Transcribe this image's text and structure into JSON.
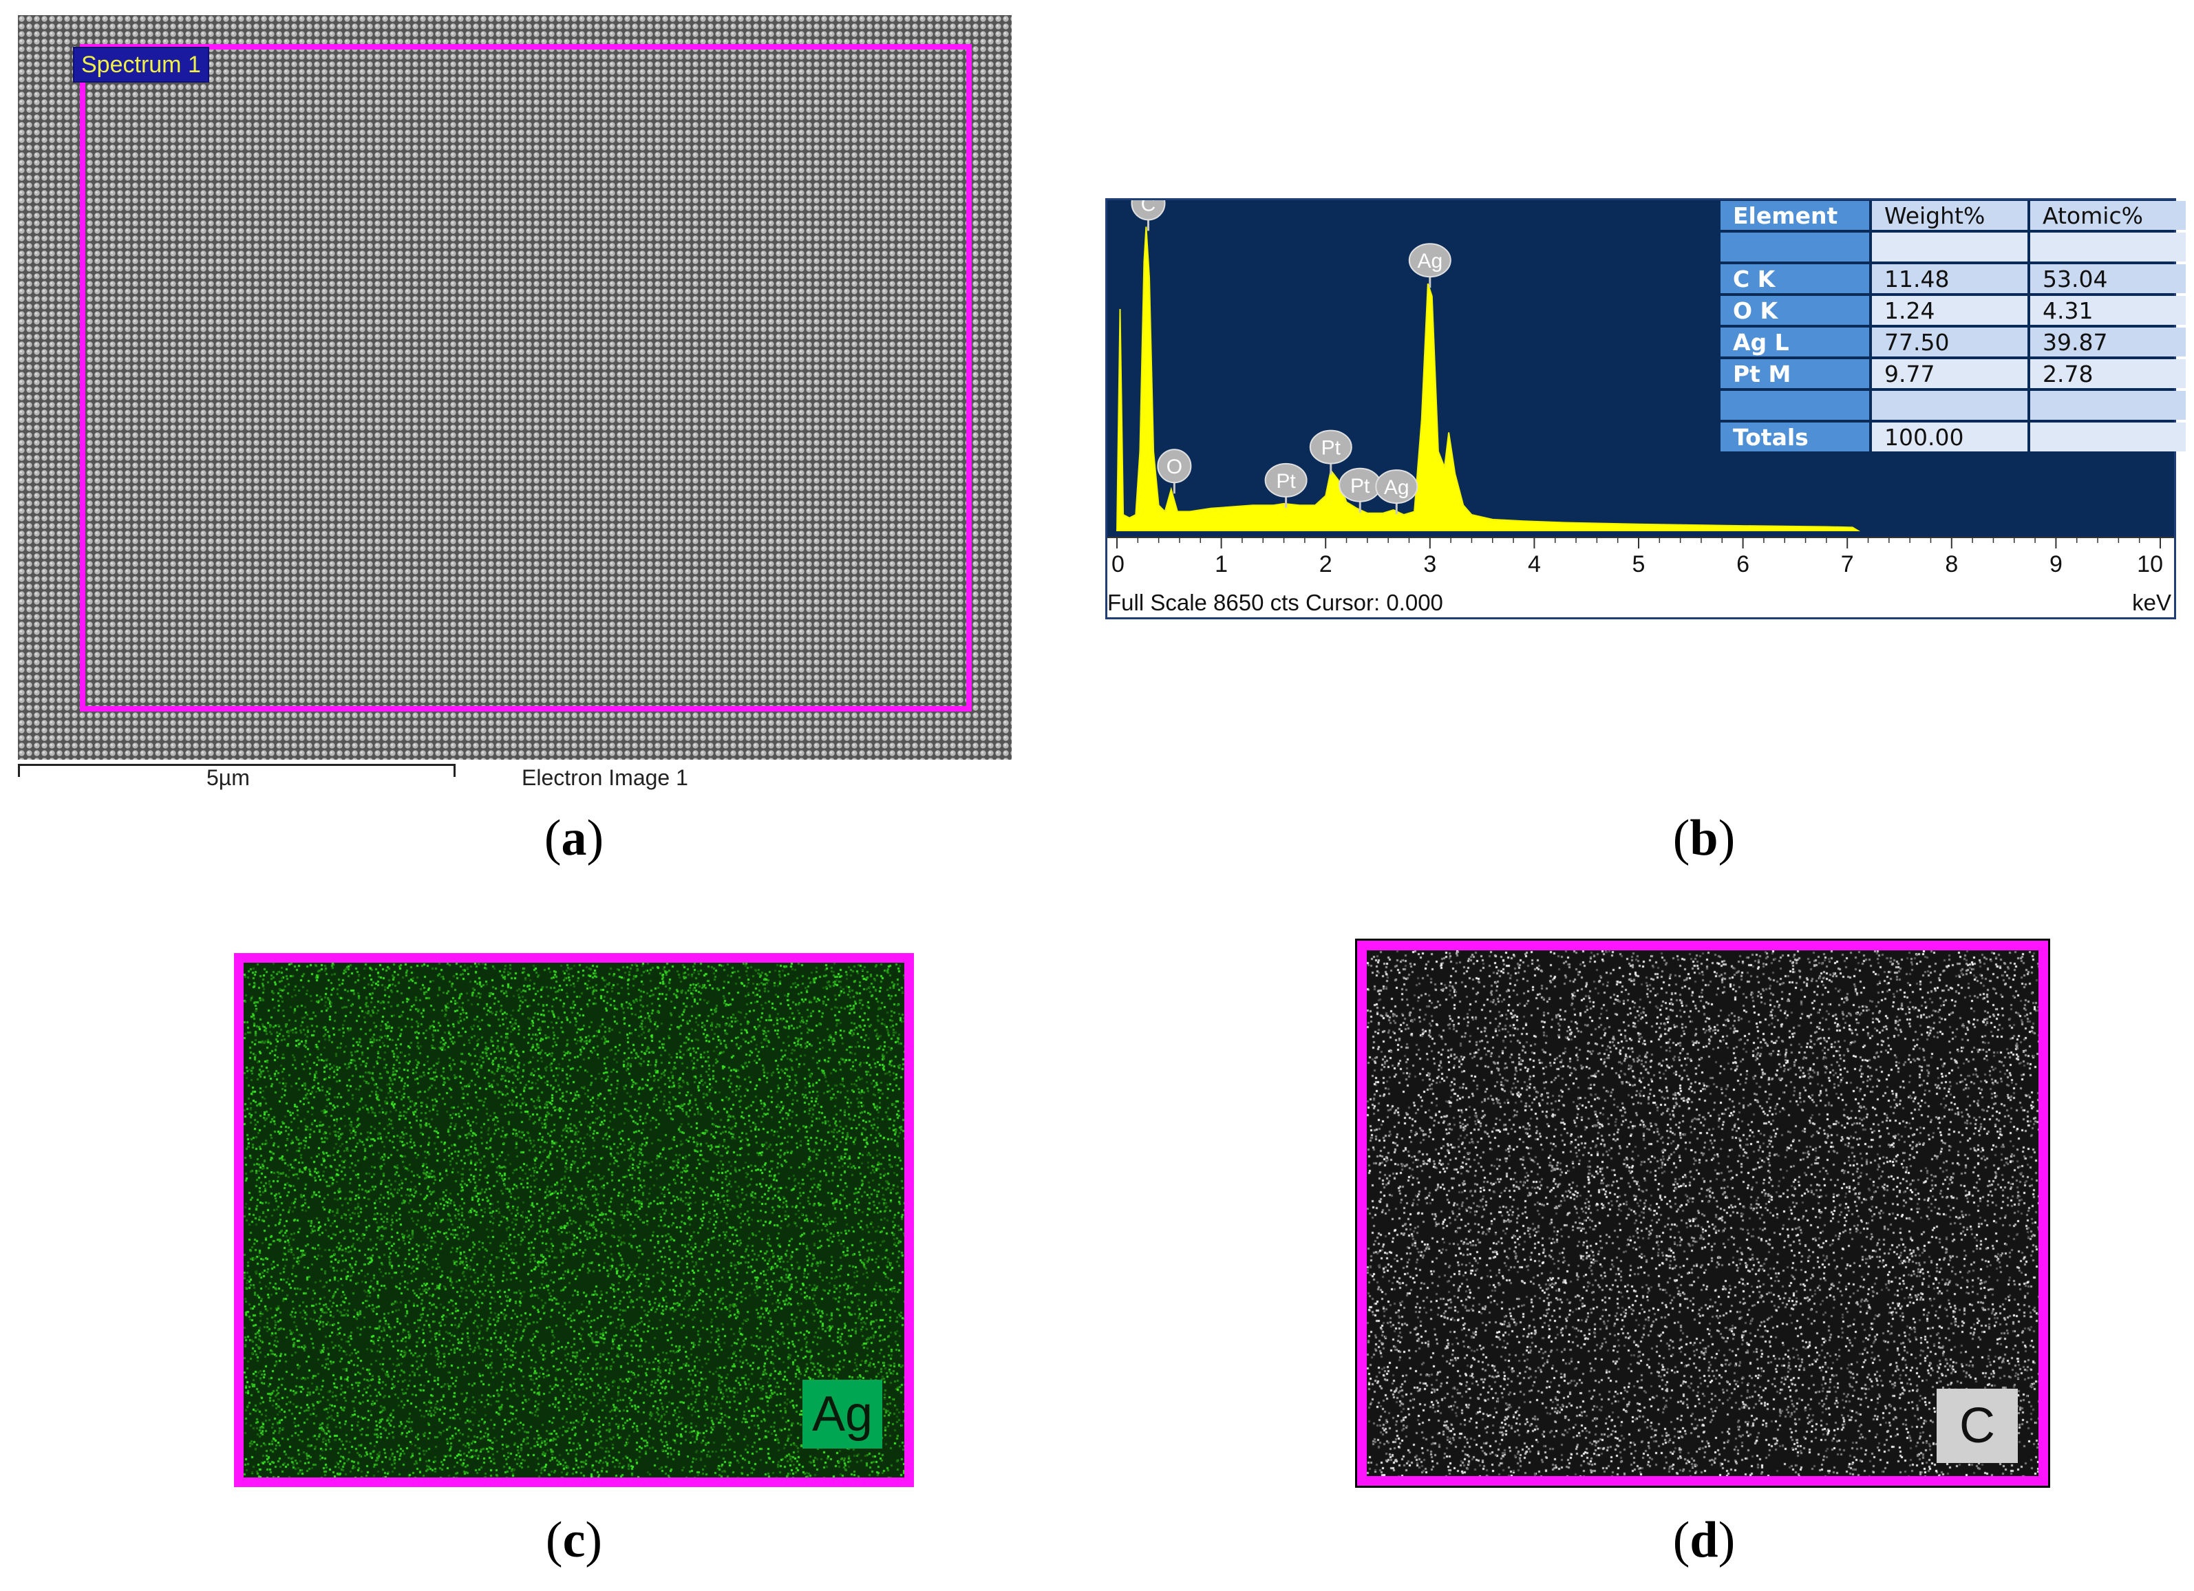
{
  "panels": {
    "a": {
      "label": "(a)",
      "label_letter": "a",
      "spectrum_label": "Spectrum 1",
      "scale_bar": "5µm",
      "image_caption": "Electron Image 1"
    },
    "b": {
      "label": "(b)",
      "label_letter": "b",
      "footer_left": "Full Scale 8650 cts Cursor: 0.000",
      "footer_right": "keV",
      "table": {
        "headers": [
          "Element",
          "Weight%",
          "Atomic%"
        ],
        "rows": [
          [
            "",
            "",
            ""
          ],
          [
            "C K",
            "11.48",
            "53.04"
          ],
          [
            "O K",
            "1.24",
            "4.31"
          ],
          [
            "Ag L",
            "77.50",
            "39.87"
          ],
          [
            "Pt M",
            "9.77",
            "2.78"
          ],
          [
            "",
            "",
            ""
          ],
          [
            "Totals",
            "100.00",
            ""
          ]
        ]
      }
    },
    "c": {
      "label": "(c)",
      "label_letter": "c",
      "element_tag": "Ag"
    },
    "d": {
      "label": "(d)",
      "label_letter": "d",
      "element_tag": "C"
    }
  },
  "chart_data": {
    "type": "line",
    "xlabel": "keV",
    "xlim": [
      0,
      10
    ],
    "x_ticks": [
      "0",
      "1",
      "2",
      "3",
      "4",
      "5",
      "6",
      "7",
      "8",
      "9",
      "10"
    ],
    "full_scale_cts": 8650,
    "peaks": [
      {
        "element": "C",
        "kev": 0.28,
        "label_kev": 0.3
      },
      {
        "element": "O",
        "kev": 0.52,
        "label_kev": 0.55
      },
      {
        "element": "Pt",
        "kev": 1.6,
        "label_kev": 1.62
      },
      {
        "element": "Pt",
        "kev": 2.05,
        "label_kev": 2.05
      },
      {
        "element": "Pt",
        "kev": 2.3,
        "label_kev": 2.33
      },
      {
        "element": "Ag",
        "kev": 2.98,
        "label_kev": 3.0
      },
      {
        "element": "Ag",
        "kev": 2.65,
        "label_kev": 2.68
      }
    ],
    "spectrum": [
      [
        0.0,
        0.0
      ],
      [
        0.03,
        0.7
      ],
      [
        0.06,
        0.05
      ],
      [
        0.12,
        0.04
      ],
      [
        0.18,
        0.05
      ],
      [
        0.22,
        0.25
      ],
      [
        0.26,
        0.85
      ],
      [
        0.28,
        0.96
      ],
      [
        0.31,
        0.8
      ],
      [
        0.35,
        0.25
      ],
      [
        0.4,
        0.08
      ],
      [
        0.46,
        0.06
      ],
      [
        0.52,
        0.13
      ],
      [
        0.58,
        0.06
      ],
      [
        0.7,
        0.06
      ],
      [
        0.9,
        0.07
      ],
      [
        1.1,
        0.075
      ],
      [
        1.3,
        0.08
      ],
      [
        1.5,
        0.08
      ],
      [
        1.6,
        0.085
      ],
      [
        1.75,
        0.08
      ],
      [
        1.9,
        0.08
      ],
      [
        2.0,
        0.11
      ],
      [
        2.05,
        0.19
      ],
      [
        2.12,
        0.16
      ],
      [
        2.2,
        0.09
      ],
      [
        2.3,
        0.07
      ],
      [
        2.4,
        0.055
      ],
      [
        2.55,
        0.055
      ],
      [
        2.65,
        0.065
      ],
      [
        2.75,
        0.05
      ],
      [
        2.85,
        0.06
      ],
      [
        2.92,
        0.35
      ],
      [
        2.98,
        0.78
      ],
      [
        3.02,
        0.74
      ],
      [
        3.08,
        0.25
      ],
      [
        3.14,
        0.2
      ],
      [
        3.18,
        0.31
      ],
      [
        3.24,
        0.18
      ],
      [
        3.32,
        0.08
      ],
      [
        3.4,
        0.05
      ],
      [
        3.6,
        0.035
      ],
      [
        3.9,
        0.03
      ],
      [
        4.3,
        0.025
      ],
      [
        5.0,
        0.02
      ],
      [
        6.0,
        0.015
      ],
      [
        6.8,
        0.012
      ],
      [
        7.05,
        0.01
      ],
      [
        7.1,
        0.0
      ]
    ]
  }
}
